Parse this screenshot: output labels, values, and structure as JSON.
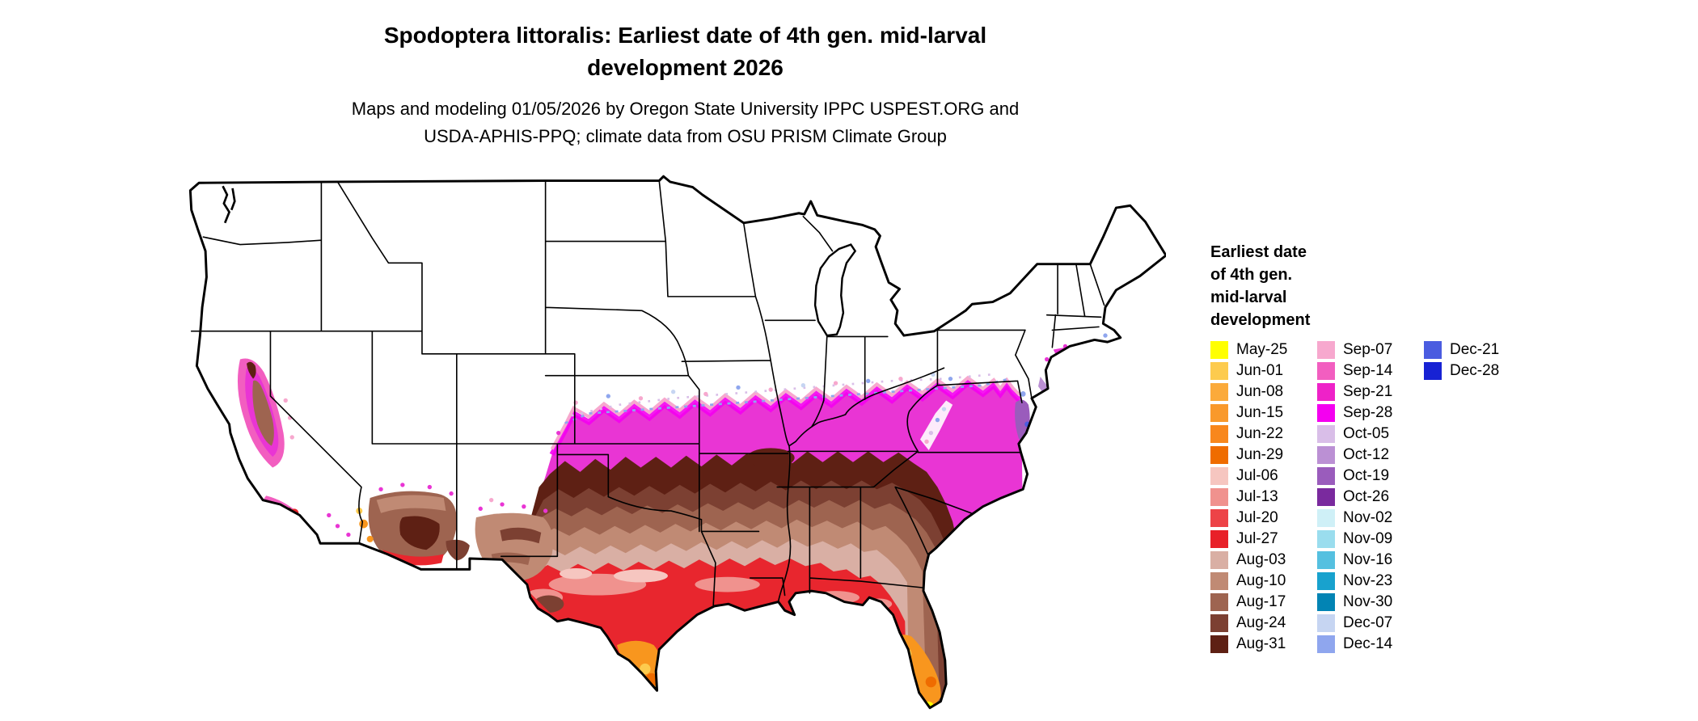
{
  "header": {
    "title_lines": [
      "Spodoptera littoralis: Earliest date of 4th gen. mid-larval",
      "development 2026"
    ],
    "subtitle_lines": [
      "Maps and modeling 01/05/2026 by Oregon State University IPPC USPEST.ORG and",
      "USDA-APHIS-PPQ; climate data from OSU PRISM Climate Group"
    ]
  },
  "legend": {
    "title_lines": [
      "Earliest date",
      "of 4th gen.",
      "mid-larval",
      "development"
    ],
    "columns": [
      {
        "items": [
          {
            "label": "May-25",
            "color": "#FFFF00"
          },
          {
            "label": "Jun-01",
            "color": "#FDCB4E"
          },
          {
            "label": "Jun-08",
            "color": "#FBAA3A"
          },
          {
            "label": "Jun-15",
            "color": "#F9992B"
          },
          {
            "label": "Jun-22",
            "color": "#F8871C"
          },
          {
            "label": "Jun-29",
            "color": "#EF6C00"
          },
          {
            "label": "Jul-06",
            "color": "#F6C6C0"
          },
          {
            "label": "Jul-13",
            "color": "#F0928E"
          },
          {
            "label": "Jul-20",
            "color": "#ED4347"
          },
          {
            "label": "Jul-27",
            "color": "#E82028"
          },
          {
            "label": "Aug-03",
            "color": "#D9AFA4"
          },
          {
            "label": "Aug-10",
            "color": "#C08A74"
          },
          {
            "label": "Aug-17",
            "color": "#9E6450"
          },
          {
            "label": "Aug-24",
            "color": "#7C4032"
          },
          {
            "label": "Aug-31",
            "color": "#5E2014"
          }
        ]
      },
      {
        "items": [
          {
            "label": "Sep-07",
            "color": "#F7A8CE"
          },
          {
            "label": "Sep-14",
            "color": "#F25EC0"
          },
          {
            "label": "Sep-21",
            "color": "#EE22C8"
          },
          {
            "label": "Sep-28",
            "color": "#F400F0"
          },
          {
            "label": "Oct-05",
            "color": "#D9BEE8"
          },
          {
            "label": "Oct-12",
            "color": "#BB90D4"
          },
          {
            "label": "Oct-19",
            "color": "#9A5CBC"
          },
          {
            "label": "Oct-26",
            "color": "#7A2A9E"
          },
          {
            "label": "Nov-02",
            "color": "#CFF0F7"
          },
          {
            "label": "Nov-09",
            "color": "#9ADDEE"
          },
          {
            "label": "Nov-16",
            "color": "#55C0E0"
          },
          {
            "label": "Nov-23",
            "color": "#18A2CE"
          },
          {
            "label": "Nov-30",
            "color": "#0284B4"
          },
          {
            "label": "Dec-07",
            "color": "#C6D5F2"
          },
          {
            "label": "Dec-14",
            "color": "#8FA6EE"
          }
        ]
      },
      {
        "items": [
          {
            "label": "Dec-21",
            "color": "#4A5CE0"
          },
          {
            "label": "Dec-28",
            "color": "#1722D4"
          }
        ]
      }
    ]
  },
  "map": {
    "description": "Contiguous United States raster map of earliest date of 4th generation mid-larval development; uncolored (white) areas indicate the stage is not reached",
    "land_color": "#FFFFFF",
    "border_color": "#000000"
  }
}
